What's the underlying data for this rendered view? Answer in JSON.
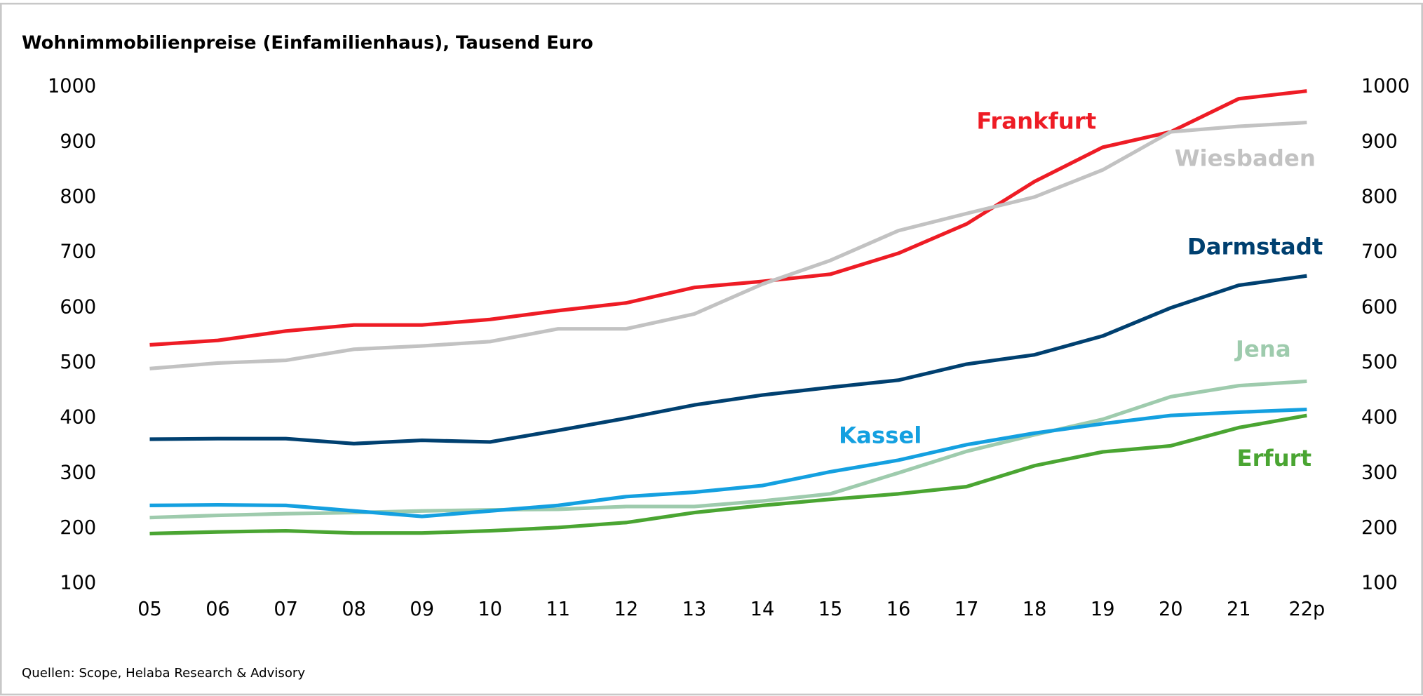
{
  "chart_data": {
    "type": "line",
    "title": "Wohnimmobilienpreise (Einfamilienhaus), Tausend Euro",
    "source": "Quellen: Scope, Helaba Research & Advisory",
    "categories": [
      "05",
      "06",
      "07",
      "08",
      "09",
      "10",
      "11",
      "12",
      "13",
      "14",
      "15",
      "16",
      "17",
      "18",
      "19",
      "20",
      "21",
      "22p"
    ],
    "ylim": [
      100,
      1000
    ],
    "yticks": [
      100,
      200,
      300,
      400,
      500,
      600,
      700,
      800,
      900,
      1000
    ],
    "y2lim": [
      100,
      1000
    ],
    "y2ticks": [
      100,
      200,
      300,
      400,
      500,
      600,
      700,
      800,
      900,
      1000
    ],
    "grid": false,
    "series": [
      {
        "name": "Frankfurt",
        "color": "#ee1c25",
        "values": [
          533,
          541,
          558,
          569,
          569,
          579,
          595,
          609,
          637,
          648,
          661,
          699,
          752,
          829,
          891,
          919,
          979,
          993
        ]
      },
      {
        "name": "Wiesbaden",
        "color": "#c2c2c2",
        "values": [
          490,
          500,
          505,
          525,
          531,
          539,
          562,
          562,
          589,
          643,
          686,
          740,
          771,
          801,
          850,
          919,
          929,
          936
        ]
      },
      {
        "name": "Darmstadt",
        "color": "#004070",
        "values": [
          362,
          363,
          363,
          354,
          360,
          357,
          378,
          400,
          424,
          442,
          456,
          469,
          498,
          515,
          549,
          600,
          641,
          658
        ]
      },
      {
        "name": "Jena",
        "color": "#9ecbad",
        "values": [
          220,
          224,
          227,
          229,
          232,
          234,
          235,
          240,
          240,
          250,
          263,
          301,
          340,
          370,
          398,
          439,
          459,
          467
        ]
      },
      {
        "name": "Kassel",
        "color": "#14a0e0",
        "values": [
          242,
          243,
          242,
          232,
          222,
          232,
          242,
          258,
          266,
          278,
          303,
          324,
          352,
          373,
          390,
          405,
          411,
          416
        ]
      },
      {
        "name": "Erfurt",
        "color": "#4aa532",
        "values": [
          191,
          194,
          196,
          192,
          192,
          196,
          202,
          211,
          229,
          242,
          253,
          263,
          276,
          314,
          339,
          350,
          383,
          405
        ]
      }
    ]
  }
}
